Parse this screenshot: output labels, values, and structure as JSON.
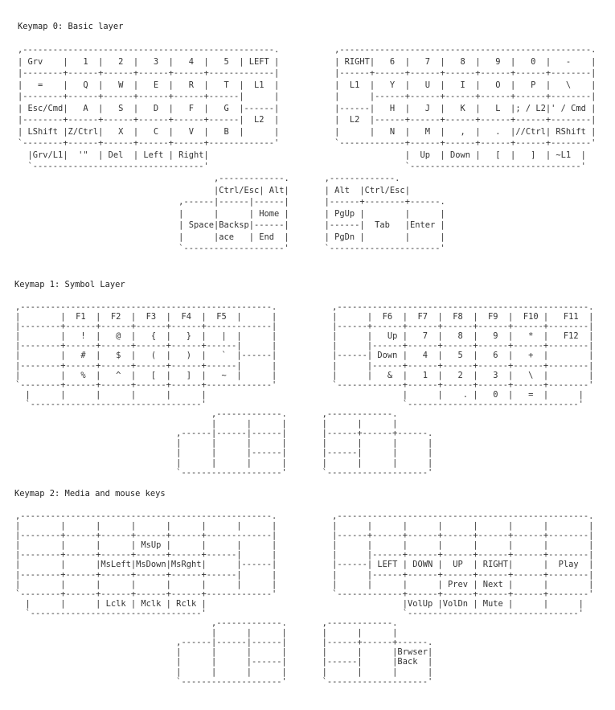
{
  "keymaps": [
    {
      "title": "Keymap 0: Basic layer",
      "art": [
        ",--------------------------------------------------.           ,--------------------------------------------------.",
        "| Grv    |   1  |   2  |   3  |   4  |   5  | LEFT |           | RIGHT|   6  |   7  |   8  |   9  |   0  |   -    |",
        "|--------+------+------+------+------+-------------|           |------+------+------+------+------+------+--------|",
        "|   =    |   Q  |   W  |   E  |   R  |   T  |  L1  |           |  L1  |   Y  |   U  |   I  |   O  |   P  |   \\    |",
        "|--------+------+------+------+------+------|      |           |      |------+------+------+------+------+--------|",
        "| Esc/Cmd|   A  |   S  |   D  |   F  |   G  |------|           |------|   H  |   J  |   K  |   L  |; / L2|' / Cmd |",
        "|--------+------+------+------+------+------|  L2  |           |  L2  |------+------+------+------+------+--------|",
        "| LShift |Z/Ctrl|   X  |   C  |   V  |   B  |      |           |      |   N  |   M  |   ,  |   .  |//Ctrl| RShift |",
        "`--------+------+------+------+------+-------------'           `-------------+------+------+------+------+--------'",
        "  |Grv/L1|  '\"  | Del  | Left | Right|                                       |  Up  | Down |   [  |   ]  | ~L1  |",
        "  `----------------------------------'                                       `----------------------------------'",
        "                                       ,-------------.       ,-------------.",
        "                                       |Ctrl/Esc| Alt|       | Alt  |Ctrl/Esc|",
        "                                ,------|------|------|       |------+--------+------.",
        "                                |      |      | Home |       | PgUp |        |      |",
        "                                | Space|Backsp|------|       |------|  Tab   |Enter |",
        "                                |      |ace   | End  |       | PgDn |        |      |",
        "                                `--------------------'       `----------------------'"
      ]
    },
    {
      "title": "Keymap 1: Symbol Layer",
      "art": [
        ",--------------------------------------------------.           ,--------------------------------------------------.",
        "|        |  F1  |  F2  |  F3  |  F4  |  F5  |      |           |      |  F6  |  F7  |  F8  |  F9  |  F10 |   F11  |",
        "|--------+------+------+------+------+-------------|           |------+------+------+------+------+------+--------|",
        "|        |   !  |   @  |   {  |   }  |   |  |      |           |      |   Up |   7  |   8  |   9  |   *  |   F12  |",
        "|--------+------+------+------+------+------|      |           |      |------+------+------+------+------+--------|",
        "|        |   #  |   $  |   (  |   )  |   `  |------|           |------| Down |   4  |   5  |   6  |   +  |        |",
        "|--------+------+------+------+------+------|      |           |      |------+------+------+------+------+--------|",
        "|        |   %  |   ^  |   [  |   ]  |   ~  |      |           |      |   &  |   1  |   2  |   3  |   \\  |        |",
        "`--------+------+------+------+------+-------------'           `-------------+------+------+------+------+--------'",
        "  |      |      |      |      |      |                                       |      |    . |   0  |   =  |      |",
        "  `----------------------------------'                                       `----------------------------------'",
        "                                       ,-------------.       ,-------------.",
        "                                       |      |      |       |      |      |",
        "                                ,------|------|------|       |------+------+------.",
        "                                |      |      |      |       |      |      |      |",
        "                                |      |      |------|       |------|      |      |",
        "                                |      |      |      |       |      |      |      |",
        "                                `--------------------'       `--------------------'"
      ]
    },
    {
      "title": "Keymap 2: Media and mouse keys",
      "art": [
        ",--------------------------------------------------.           ,--------------------------------------------------.",
        "|        |      |      |      |      |      |      |           |      |      |      |      |      |      |        |",
        "|--------+------+------+------+------+-------------|           |------+------+------+------+------+------+--------|",
        "|        |      |      | MsUp |      |      |      |           |      |      |      |      |      |      |        |",
        "|--------+------+------+------+------+------|      |           |      |------+------+------+------+------+--------|",
        "|        |      |MsLeft|MsDown|MsRght|      |------|           |------| LEFT | DOWN |  UP  | RIGHT|      |  Play  |",
        "|--------+------+------+------+------+------|      |           |      |------+------+------+------+------+--------|",
        "|        |      |      |      |      |      |      |           |      |      |      | Prev | Next |      |        |",
        "`--------+------+------+------+------+-------------'           `-------------+------+------+------+------+--------'",
        "  |      |      | Lclk | Mclk | Rclk |                                       |VolUp |VolDn | Mute |      |      |",
        "  `----------------------------------'                                       `----------------------------------'",
        "                                       ,-------------.       ,-------------.",
        "                                       |      |      |       |      |      |",
        "                                ,------|------|------|       |------+------+------.",
        "                                |      |      |      |       |      |      |Brwser|",
        "                                |      |      |------|       |------|      |Back  |",
        "                                |      |      |      |       |      |      |      |",
        "                                `--------------------'       `--------------------'"
      ]
    }
  ]
}
